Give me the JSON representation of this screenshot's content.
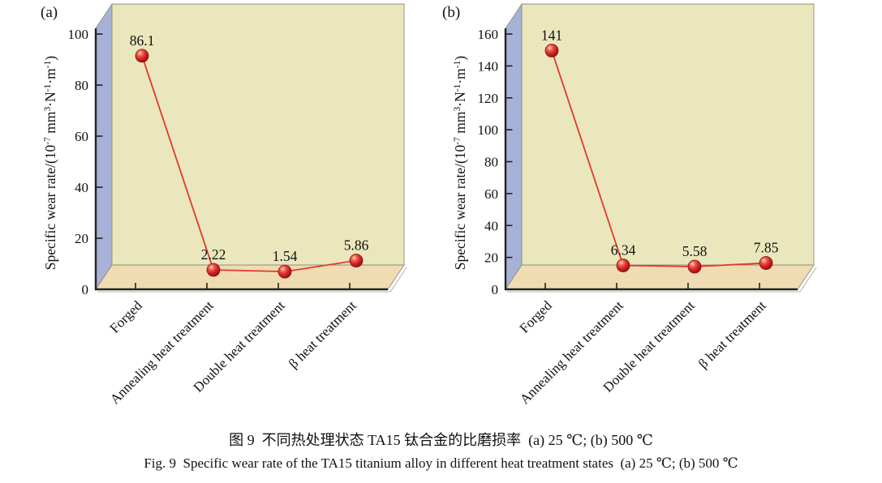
{
  "figure": {
    "caption_zh": "图 9  不同热处理状态 TA15 钛合金的比磨损率  (a) 25 ℃; (b) 500 ℃",
    "caption_en": "Fig. 9  Specific wear rate of the TA15 titanium alloy in different heat treatment states  (a) 25 ℃; (b) 500 ℃"
  },
  "colors": {
    "wall_back": "#eae7bc",
    "wall_left": "#a8b2d8",
    "floor": "#f0dcb2",
    "panel_edge": "#8d8d7c",
    "axis": "#222222",
    "series_line": "#e23a2e",
    "marker_highlight": "#fdd0c6",
    "marker_mid": "#ee5a49",
    "marker_main": "#d42421",
    "marker_dark": "#8c0f14",
    "text": "#111111"
  },
  "chart_data": [
    {
      "type": "line",
      "panel": "(a)",
      "condition_label": "25 ℃",
      "categories": [
        "Forged",
        "Annealing heat treatment",
        "Double heat treatment",
        "β heat treatment"
      ],
      "values": [
        86.1,
        2.22,
        1.54,
        5.86
      ],
      "point_labels": [
        "86.1",
        "2.22",
        "1.54",
        "5.86"
      ],
      "ylabel": "Specific wear rate/(10⁻⁷ mm³·N⁻¹·m⁻¹)",
      "ylabel_parts": [
        {
          "t": "Specific wear rate/(10"
        },
        {
          "t": "-7",
          "sup": true
        },
        {
          "t": " mm"
        },
        {
          "t": "3",
          "sup": true
        },
        {
          "t": "·N"
        },
        {
          "t": "-1",
          "sup": true
        },
        {
          "t": "·m"
        },
        {
          "t": "-1",
          "sup": true
        },
        {
          "t": ")"
        }
      ],
      "ylim": [
        0,
        100
      ],
      "yticks": [
        0,
        20,
        40,
        60,
        80,
        100
      ],
      "grid": false,
      "legend": false
    },
    {
      "type": "line",
      "panel": "(b)",
      "condition_label": "500 ℃",
      "categories": [
        "Forged",
        "Annealing heat treatment",
        "Double heat treatment",
        "β heat treatment"
      ],
      "values": [
        141,
        6.34,
        5.58,
        7.85
      ],
      "point_labels": [
        "141",
        "6.34",
        "5.58",
        "7.85"
      ],
      "ylabel": "Specific wear rate/(10⁻⁷ mm³·N⁻¹·m⁻¹)",
      "ylabel_parts": [
        {
          "t": "Specific wear rate/(10"
        },
        {
          "t": "-7",
          "sup": true
        },
        {
          "t": " mm"
        },
        {
          "t": "3",
          "sup": true
        },
        {
          "t": "·N"
        },
        {
          "t": "-1",
          "sup": true
        },
        {
          "t": "·m"
        },
        {
          "t": "-1",
          "sup": true
        },
        {
          "t": ")"
        }
      ],
      "ylim": [
        0,
        160
      ],
      "yticks": [
        0,
        20,
        40,
        60,
        80,
        100,
        120,
        140,
        160
      ],
      "grid": false,
      "legend": false
    }
  ]
}
